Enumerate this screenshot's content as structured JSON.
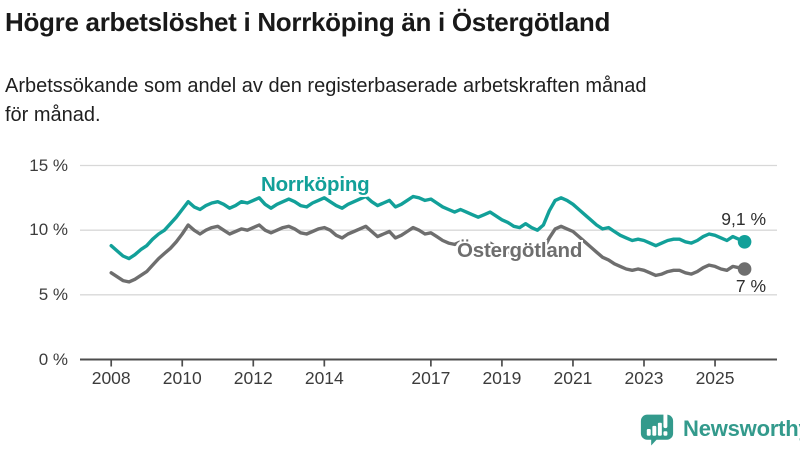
{
  "header": {
    "title": "Högre arbetslöshet i Norrköping än i Östergötland",
    "subtitle_lines": [
      "Arbetssökande som andel av den registerbaserade arbetskraften månad",
      "för månad."
    ]
  },
  "colors": {
    "norrkoping_line": "#12a099",
    "ostergotland_line": "#6e6e6e",
    "grid": "#d8d8d8",
    "axis": "#4d4d4d",
    "tick_text": "#3c3c3c",
    "title_text": "#191919",
    "brand": "#339a8c"
  },
  "footer": {
    "brand": "Newsworthy",
    "logo_icon": "bar-chart-speech-bubble-icon",
    "brand_color": "#339a8c"
  },
  "chart_data": {
    "type": "line",
    "title": "Högre arbetslöshet i Norrköping än i Östergötland",
    "subtitle": "Arbetssökande som andel av den registerbaserade arbetskraften månad för månad.",
    "unit": "%",
    "grid": "horizontal",
    "legend_position": "inline-labels",
    "x_start_year": 2008,
    "points_per_year": 6,
    "ylim": [
      0,
      15.5
    ],
    "yticks": [
      {
        "value": 0,
        "label": "0 %"
      },
      {
        "value": 5,
        "label": "5 %"
      },
      {
        "value": 10,
        "label": "10 %"
      },
      {
        "value": 15,
        "label": "15 %"
      }
    ],
    "xticks": [
      {
        "year": 2008,
        "label": "2008"
      },
      {
        "year": 2010,
        "label": "2010"
      },
      {
        "year": 2012,
        "label": "2012"
      },
      {
        "year": 2014,
        "label": "2014"
      },
      {
        "year": 2017,
        "label": "2017"
      },
      {
        "year": 2019,
        "label": "2019"
      },
      {
        "year": 2021,
        "label": "2021"
      },
      {
        "year": 2023,
        "label": "2023"
      },
      {
        "year": 2025,
        "label": "2025"
      }
    ],
    "series": [
      {
        "name": "Norrköping",
        "color": "#12a099",
        "end_label": "9,1 %",
        "last_value": 9.1,
        "values": [
          8.8,
          8.4,
          8.0,
          7.8,
          8.1,
          8.5,
          8.8,
          9.3,
          9.7,
          10.0,
          10.5,
          11.0,
          11.6,
          12.2,
          11.8,
          11.6,
          11.9,
          12.1,
          12.2,
          12.0,
          11.7,
          11.9,
          12.2,
          12.1,
          12.3,
          12.5,
          12.0,
          11.7,
          12.0,
          12.2,
          12.4,
          12.2,
          11.9,
          11.8,
          12.1,
          12.3,
          12.5,
          12.2,
          11.9,
          11.7,
          12.0,
          12.2,
          12.4,
          12.6,
          12.2,
          11.9,
          12.1,
          12.3,
          11.8,
          12.0,
          12.3,
          12.6,
          12.5,
          12.3,
          12.4,
          12.1,
          11.8,
          11.6,
          11.4,
          11.6,
          11.4,
          11.2,
          11.0,
          11.2,
          11.4,
          11.1,
          10.8,
          10.6,
          10.3,
          10.2,
          10.5,
          10.2,
          10.0,
          10.4,
          11.5,
          12.3,
          12.5,
          12.3,
          12.0,
          11.6,
          11.2,
          10.8,
          10.4,
          10.1,
          10.2,
          9.9,
          9.6,
          9.4,
          9.2,
          9.3,
          9.2,
          9.0,
          8.8,
          9.0,
          9.2,
          9.3,
          9.3,
          9.1,
          9.0,
          9.2,
          9.5,
          9.7,
          9.6,
          9.4,
          9.2,
          9.5,
          9.3,
          9.1
        ]
      },
      {
        "name": "Östergötland",
        "color": "#6e6e6e",
        "end_label": "7 %",
        "last_value": 7.0,
        "values": [
          6.7,
          6.4,
          6.1,
          6.0,
          6.2,
          6.5,
          6.8,
          7.3,
          7.8,
          8.2,
          8.6,
          9.1,
          9.7,
          10.4,
          10.0,
          9.7,
          10.0,
          10.2,
          10.3,
          10.0,
          9.7,
          9.9,
          10.1,
          10.0,
          10.2,
          10.4,
          10.0,
          9.8,
          10.0,
          10.2,
          10.3,
          10.1,
          9.8,
          9.7,
          9.9,
          10.1,
          10.2,
          10.0,
          9.6,
          9.4,
          9.7,
          9.9,
          10.1,
          10.3,
          9.9,
          9.5,
          9.7,
          9.9,
          9.4,
          9.6,
          9.9,
          10.2,
          10.0,
          9.7,
          9.8,
          9.5,
          9.2,
          9.0,
          8.9,
          9.1,
          9.0,
          8.8,
          8.6,
          8.8,
          9.0,
          8.7,
          8.5,
          8.3,
          8.1,
          8.2,
          8.4,
          8.2,
          8.1,
          8.5,
          9.4,
          10.1,
          10.3,
          10.1,
          9.9,
          9.5,
          9.1,
          8.7,
          8.3,
          7.9,
          7.7,
          7.4,
          7.2,
          7.0,
          6.9,
          7.0,
          6.9,
          6.7,
          6.5,
          6.6,
          6.8,
          6.9,
          6.9,
          6.7,
          6.6,
          6.8,
          7.1,
          7.3,
          7.2,
          7.0,
          6.9,
          7.2,
          7.1,
          7.0
        ]
      }
    ]
  }
}
